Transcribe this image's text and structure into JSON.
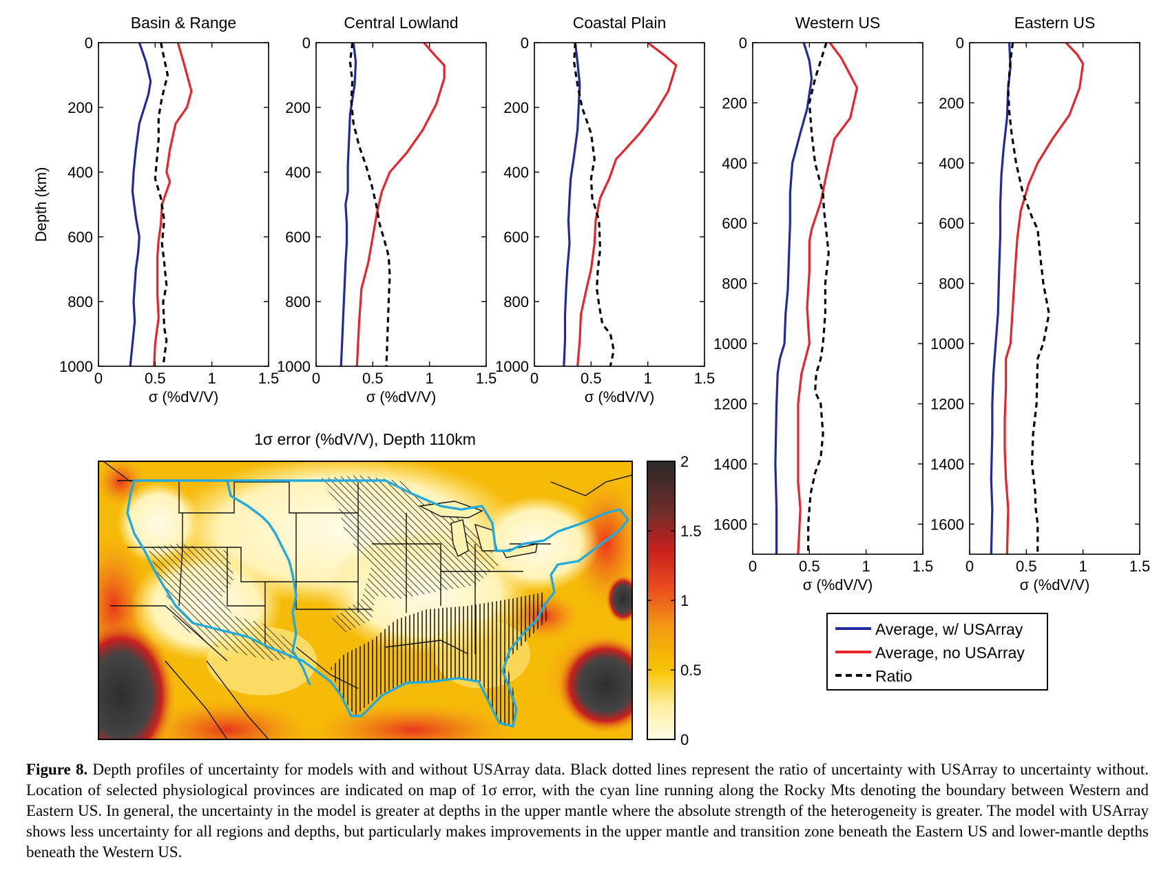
{
  "chart_data": [
    {
      "type": "line",
      "title": "Basin & Range",
      "xlabel": "σ (%dV/V)",
      "ylabel": "Depth (km)",
      "xlim": [
        0,
        1.5
      ],
      "ylim": [
        0,
        1000
      ],
      "y_inverted": true,
      "xticks": [
        "0",
        "0.5",
        "1",
        "1.5"
      ],
      "yticks": [
        "0",
        "200",
        "400",
        "600",
        "800",
        "1000"
      ],
      "series": [
        {
          "name": "Average, w/ USArray",
          "color": "#1f2a9e",
          "style": "solid",
          "x": [
            0.36,
            0.42,
            0.46,
            0.44,
            0.36,
            0.33,
            0.31,
            0.3,
            0.33,
            0.36,
            0.35,
            0.33,
            0.31,
            0.32,
            0.3,
            0.28
          ],
          "y": [
            0,
            60,
            120,
            160,
            250,
            330,
            400,
            460,
            540,
            600,
            650,
            700,
            800,
            860,
            930,
            1000
          ]
        },
        {
          "name": "Average, no USArray",
          "color": "#e8242a",
          "style": "solid",
          "x": [
            0.7,
            0.75,
            0.82,
            0.78,
            0.68,
            0.63,
            0.6,
            0.63,
            0.56,
            0.55,
            0.53,
            0.52,
            0.52,
            0.53,
            0.5,
            0.49
          ],
          "y": [
            0,
            60,
            150,
            200,
            250,
            330,
            400,
            430,
            500,
            560,
            610,
            660,
            780,
            850,
            930,
            1000
          ]
        },
        {
          "name": "Ratio",
          "color": "#000000",
          "style": "dashed",
          "x": [
            0.55,
            0.58,
            0.61,
            0.56,
            0.53,
            0.53,
            0.5,
            0.55,
            0.58,
            0.56,
            0.58,
            0.6,
            0.57,
            0.58,
            0.6,
            0.57
          ],
          "y": [
            0,
            50,
            100,
            170,
            230,
            300,
            420,
            480,
            550,
            620,
            680,
            750,
            800,
            880,
            920,
            1000
          ]
        }
      ]
    },
    {
      "type": "line",
      "title": "Central Lowland",
      "xlabel": "σ (%dV/V)",
      "ylabel": "",
      "xlim": [
        0,
        1.5
      ],
      "ylim": [
        0,
        1000
      ],
      "y_inverted": true,
      "xticks": [
        "0",
        "0.5",
        "1",
        "1.5"
      ],
      "yticks": [
        "0",
        "200",
        "400",
        "600",
        "800",
        "1000"
      ],
      "series": [
        {
          "name": "Average, w/ USArray",
          "color": "#1f2a9e",
          "style": "solid",
          "x": [
            0.33,
            0.35,
            0.34,
            0.3,
            0.29,
            0.28,
            0.28,
            0.26,
            0.27,
            0.27,
            0.26,
            0.25,
            0.24,
            0.23,
            0.22
          ],
          "y": [
            0,
            60,
            130,
            220,
            300,
            380,
            460,
            500,
            560,
            620,
            680,
            760,
            840,
            920,
            1000
          ]
        },
        {
          "name": "Average, no USArray",
          "color": "#e8242a",
          "style": "solid",
          "x": [
            0.95,
            1.05,
            1.13,
            1.13,
            1.06,
            0.94,
            0.8,
            0.65,
            0.58,
            0.54,
            0.5,
            0.46,
            0.4,
            0.38,
            0.37,
            0.36
          ],
          "y": [
            0,
            40,
            70,
            110,
            190,
            270,
            340,
            400,
            460,
            520,
            600,
            680,
            760,
            860,
            930,
            1000
          ]
        },
        {
          "name": "Ratio",
          "color": "#000000",
          "style": "dashed",
          "x": [
            0.32,
            0.3,
            0.32,
            0.31,
            0.33,
            0.38,
            0.44,
            0.49,
            0.53,
            0.56,
            0.61,
            0.64,
            0.65,
            0.64,
            0.63,
            0.62
          ],
          "y": [
            0,
            60,
            120,
            180,
            250,
            320,
            380,
            440,
            500,
            560,
            620,
            660,
            720,
            800,
            900,
            1000
          ]
        }
      ]
    },
    {
      "type": "line",
      "title": "Coastal Plain",
      "xlabel": "σ (%dV/V)",
      "ylabel": "",
      "xlim": [
        0,
        1.5
      ],
      "ylim": [
        0,
        1000
      ],
      "y_inverted": true,
      "xticks": [
        "0",
        "0.5",
        "1",
        "1.5"
      ],
      "yticks": [
        "0",
        "200",
        "400",
        "600",
        "800",
        "1000"
      ],
      "series": [
        {
          "name": "Average, w/ USArray",
          "color": "#1f2a9e",
          "style": "solid",
          "x": [
            0.36,
            0.38,
            0.4,
            0.39,
            0.38,
            0.35,
            0.32,
            0.31,
            0.3,
            0.31,
            0.29,
            0.28,
            0.27,
            0.27,
            0.26
          ],
          "y": [
            0,
            60,
            130,
            200,
            270,
            350,
            420,
            480,
            550,
            620,
            700,
            760,
            840,
            920,
            1000
          ]
        },
        {
          "name": "Average, no USArray",
          "color": "#e8242a",
          "style": "solid",
          "x": [
            1.0,
            1.15,
            1.25,
            1.18,
            1.06,
            0.93,
            0.8,
            0.72,
            0.66,
            0.58,
            0.54,
            0.53,
            0.5,
            0.46,
            0.41,
            0.4,
            0.38
          ],
          "y": [
            0,
            40,
            70,
            150,
            220,
            280,
            330,
            360,
            420,
            480,
            550,
            620,
            700,
            760,
            840,
            920,
            1000
          ]
        },
        {
          "name": "Ratio",
          "color": "#000000",
          "style": "dashed",
          "x": [
            0.36,
            0.35,
            0.38,
            0.42,
            0.5,
            0.53,
            0.5,
            0.51,
            0.57,
            0.58,
            0.56,
            0.55,
            0.57,
            0.6,
            0.67,
            0.7,
            0.67
          ],
          "y": [
            0,
            60,
            130,
            200,
            280,
            360,
            420,
            480,
            550,
            640,
            700,
            760,
            810,
            870,
            900,
            950,
            1000
          ]
        }
      ]
    },
    {
      "type": "line",
      "title": "Western US",
      "xlabel": "σ (%dV/V)",
      "ylabel": "",
      "xlim": [
        0,
        1.5
      ],
      "ylim": [
        0,
        1700
      ],
      "y_inverted": true,
      "xticks": [
        "0",
        "0.5",
        "1",
        "1.5"
      ],
      "yticks": [
        "0",
        "200",
        "400",
        "600",
        "800",
        "1000",
        "1200",
        "1400",
        "1600"
      ],
      "series": [
        {
          "name": "Average, w/ USArray",
          "color": "#1f2a9e",
          "style": "solid",
          "x": [
            0.45,
            0.5,
            0.52,
            0.48,
            0.42,
            0.35,
            0.33,
            0.33,
            0.32,
            0.31,
            0.29,
            0.28,
            0.24,
            0.22,
            0.21,
            0.2,
            0.21,
            0.21
          ],
          "y": [
            0,
            60,
            120,
            220,
            300,
            400,
            500,
            600,
            700,
            820,
            900,
            1000,
            1050,
            1100,
            1200,
            1400,
            1550,
            1700
          ]
        },
        {
          "name": "Average, no USArray",
          "color": "#e8242a",
          "style": "solid",
          "x": [
            0.68,
            0.78,
            0.92,
            0.86,
            0.72,
            0.66,
            0.6,
            0.52,
            0.5,
            0.5,
            0.48,
            0.5,
            0.43,
            0.4,
            0.4,
            0.4,
            0.42,
            0.4
          ],
          "y": [
            0,
            50,
            150,
            250,
            320,
            420,
            530,
            620,
            660,
            760,
            880,
            1000,
            1100,
            1200,
            1360,
            1460,
            1550,
            1700
          ]
        },
        {
          "name": "Ratio",
          "color": "#000000",
          "style": "dashed",
          "x": [
            0.65,
            0.6,
            0.55,
            0.5,
            0.52,
            0.55,
            0.62,
            0.63,
            0.67,
            0.64,
            0.64,
            0.62,
            0.6,
            0.56,
            0.55,
            0.6,
            0.62,
            0.6,
            0.55,
            0.51,
            0.49,
            0.49
          ],
          "y": [
            0,
            60,
            120,
            200,
            300,
            400,
            500,
            560,
            700,
            800,
            900,
            1000,
            1050,
            1100,
            1160,
            1200,
            1300,
            1380,
            1430,
            1500,
            1600,
            1700
          ]
        }
      ]
    },
    {
      "type": "line",
      "title": "Eastern US",
      "xlabel": "σ (%dV/V)",
      "ylabel": "",
      "xlim": [
        0,
        1.5
      ],
      "ylim": [
        0,
        1700
      ],
      "y_inverted": true,
      "xticks": [
        "0",
        "0.5",
        "1",
        "1.5"
      ],
      "yticks": [
        "0",
        "200",
        "400",
        "600",
        "800",
        "1000",
        "1200",
        "1400",
        "1600"
      ],
      "series": [
        {
          "name": "Average, w/ USArray",
          "color": "#1f2a9e",
          "style": "solid",
          "x": [
            0.35,
            0.36,
            0.34,
            0.33,
            0.3,
            0.28,
            0.27,
            0.27,
            0.26,
            0.25,
            0.22,
            0.21,
            0.2,
            0.2,
            0.19,
            0.2,
            0.19
          ],
          "y": [
            0,
            80,
            150,
            250,
            350,
            440,
            540,
            640,
            760,
            900,
            1050,
            1100,
            1200,
            1300,
            1450,
            1550,
            1700
          ]
        },
        {
          "name": "Average, no USArray",
          "color": "#e8242a",
          "style": "solid",
          "x": [
            0.85,
            0.95,
            1.0,
            0.97,
            0.88,
            0.73,
            0.6,
            0.52,
            0.45,
            0.42,
            0.4,
            0.38,
            0.36,
            0.32,
            0.32,
            0.31,
            0.31,
            0.32,
            0.34,
            0.33
          ],
          "y": [
            0,
            40,
            70,
            150,
            240,
            320,
            400,
            470,
            560,
            650,
            760,
            880,
            1000,
            1050,
            1150,
            1250,
            1350,
            1450,
            1550,
            1700
          ]
        },
        {
          "name": "Ratio",
          "color": "#000000",
          "style": "dashed",
          "x": [
            0.38,
            0.36,
            0.34,
            0.35,
            0.37,
            0.41,
            0.47,
            0.55,
            0.6,
            0.62,
            0.65,
            0.7,
            0.65,
            0.6,
            0.59,
            0.56,
            0.55,
            0.58,
            0.58,
            0.6,
            0.6
          ],
          "y": [
            0,
            60,
            150,
            230,
            300,
            400,
            500,
            580,
            620,
            700,
            800,
            900,
            1000,
            1050,
            1200,
            1300,
            1400,
            1500,
            1540,
            1600,
            1700
          ]
        }
      ]
    },
    {
      "type": "heatmap",
      "title": "1σ  error (%dV/V), Depth 110km",
      "colorbar_ticks": [
        "0",
        "0.5",
        "1",
        "1.5",
        "2"
      ],
      "colorbar_range": [
        0,
        2
      ],
      "colormap": [
        "#fffce8",
        "#fde98a",
        "#f8c200",
        "#f29b14",
        "#e94120",
        "#c41f1f",
        "#6e2d2a",
        "#2a2a2a"
      ],
      "boundary_line_color": "#22aadd"
    }
  ],
  "legend": {
    "items": [
      {
        "label": "Average, w/ USArray",
        "color": "#1f2a9e",
        "style": "solid"
      },
      {
        "label": "Average, no USArray",
        "color": "#e8242a",
        "style": "solid"
      },
      {
        "label": "Ratio",
        "color": "#000000",
        "style": "dashed"
      }
    ]
  },
  "caption": {
    "label": "Figure 8.",
    "text": " Depth profiles of uncertainty for models with and without USArray data. Black dotted lines represent the ratio of uncertainty with USArray to uncertainty without. Location of selected physiological provinces are indicated on map of 1σ error, with the cyan line running along the Rocky Mts denoting the boundary between Western and Eastern US. In general, the uncertainty in the model is greater at depths in the upper mantle where the absolute strength of the heterogeneity is greater. The model with USArray shows less uncertainty for all regions and depths, but particularly makes improvements in the upper mantle and transition zone beneath the Eastern US and lower-mantle depths beneath the Western US."
  }
}
